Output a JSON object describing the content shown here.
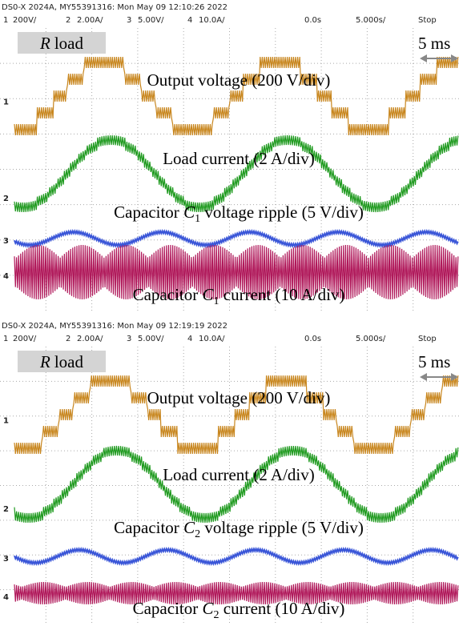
{
  "panels": [
    {
      "header": "DS0-X 2024A, MY55391316: Mon May 09 12:10:26 2022",
      "channels": [
        {
          "number": "1",
          "scale": "200V/"
        },
        {
          "number": "2",
          "scale": "2.00A/"
        },
        {
          "number": "3",
          "scale": "5.00V/"
        },
        {
          "number": "4",
          "scale": "10.0A/"
        }
      ],
      "time_offset": "0.0s",
      "time_scale": "5.000s/",
      "status": "Stop",
      "load_label": {
        "symbol": "R",
        "text": "load"
      },
      "time_marker": "5 ms",
      "traces": [
        {
          "marker": "1",
          "label": {
            "before": "Output voltage (200 V/div)"
          }
        },
        {
          "marker": "2",
          "label": {
            "before": "Load current (2 A/div)"
          }
        },
        {
          "marker": "3",
          "label": {
            "before": "Capacitor ",
            "symbol": "C",
            "subscript": "1",
            "after": " voltage ripple (5 V/div)"
          }
        },
        {
          "marker": "4",
          "label": {
            "before": "Capacitor ",
            "symbol": "C",
            "subscript": "1",
            "after": " current (10 A/div)"
          }
        }
      ]
    },
    {
      "header": "DS0-X 2024A, MY55391316: Mon May 09 12:19:19 2022",
      "channels": [
        {
          "number": "1",
          "scale": "200V/"
        },
        {
          "number": "2",
          "scale": "2.00A/"
        },
        {
          "number": "3",
          "scale": "5.00V/"
        },
        {
          "number": "4",
          "scale": "10.0A/"
        }
      ],
      "time_offset": "0.0s",
      "time_scale": "5.000s/",
      "status": "Stop",
      "load_label": {
        "symbol": "R",
        "text": "load"
      },
      "time_marker": "5 ms",
      "traces": [
        {
          "marker": "1",
          "label": {
            "before": "Output voltage (200 V/div)"
          }
        },
        {
          "marker": "2",
          "label": {
            "before": "Load current (2 A/div)"
          }
        },
        {
          "marker": "3",
          "label": {
            "before": "Capacitor ",
            "symbol": "C",
            "subscript": "2",
            "after": " voltage ripple (5 V/div)"
          }
        },
        {
          "marker": "4",
          "label": {
            "before": "Capacitor ",
            "symbol": "C",
            "subscript": "2",
            "after": " current (10 A/div)"
          }
        }
      ]
    }
  ]
}
